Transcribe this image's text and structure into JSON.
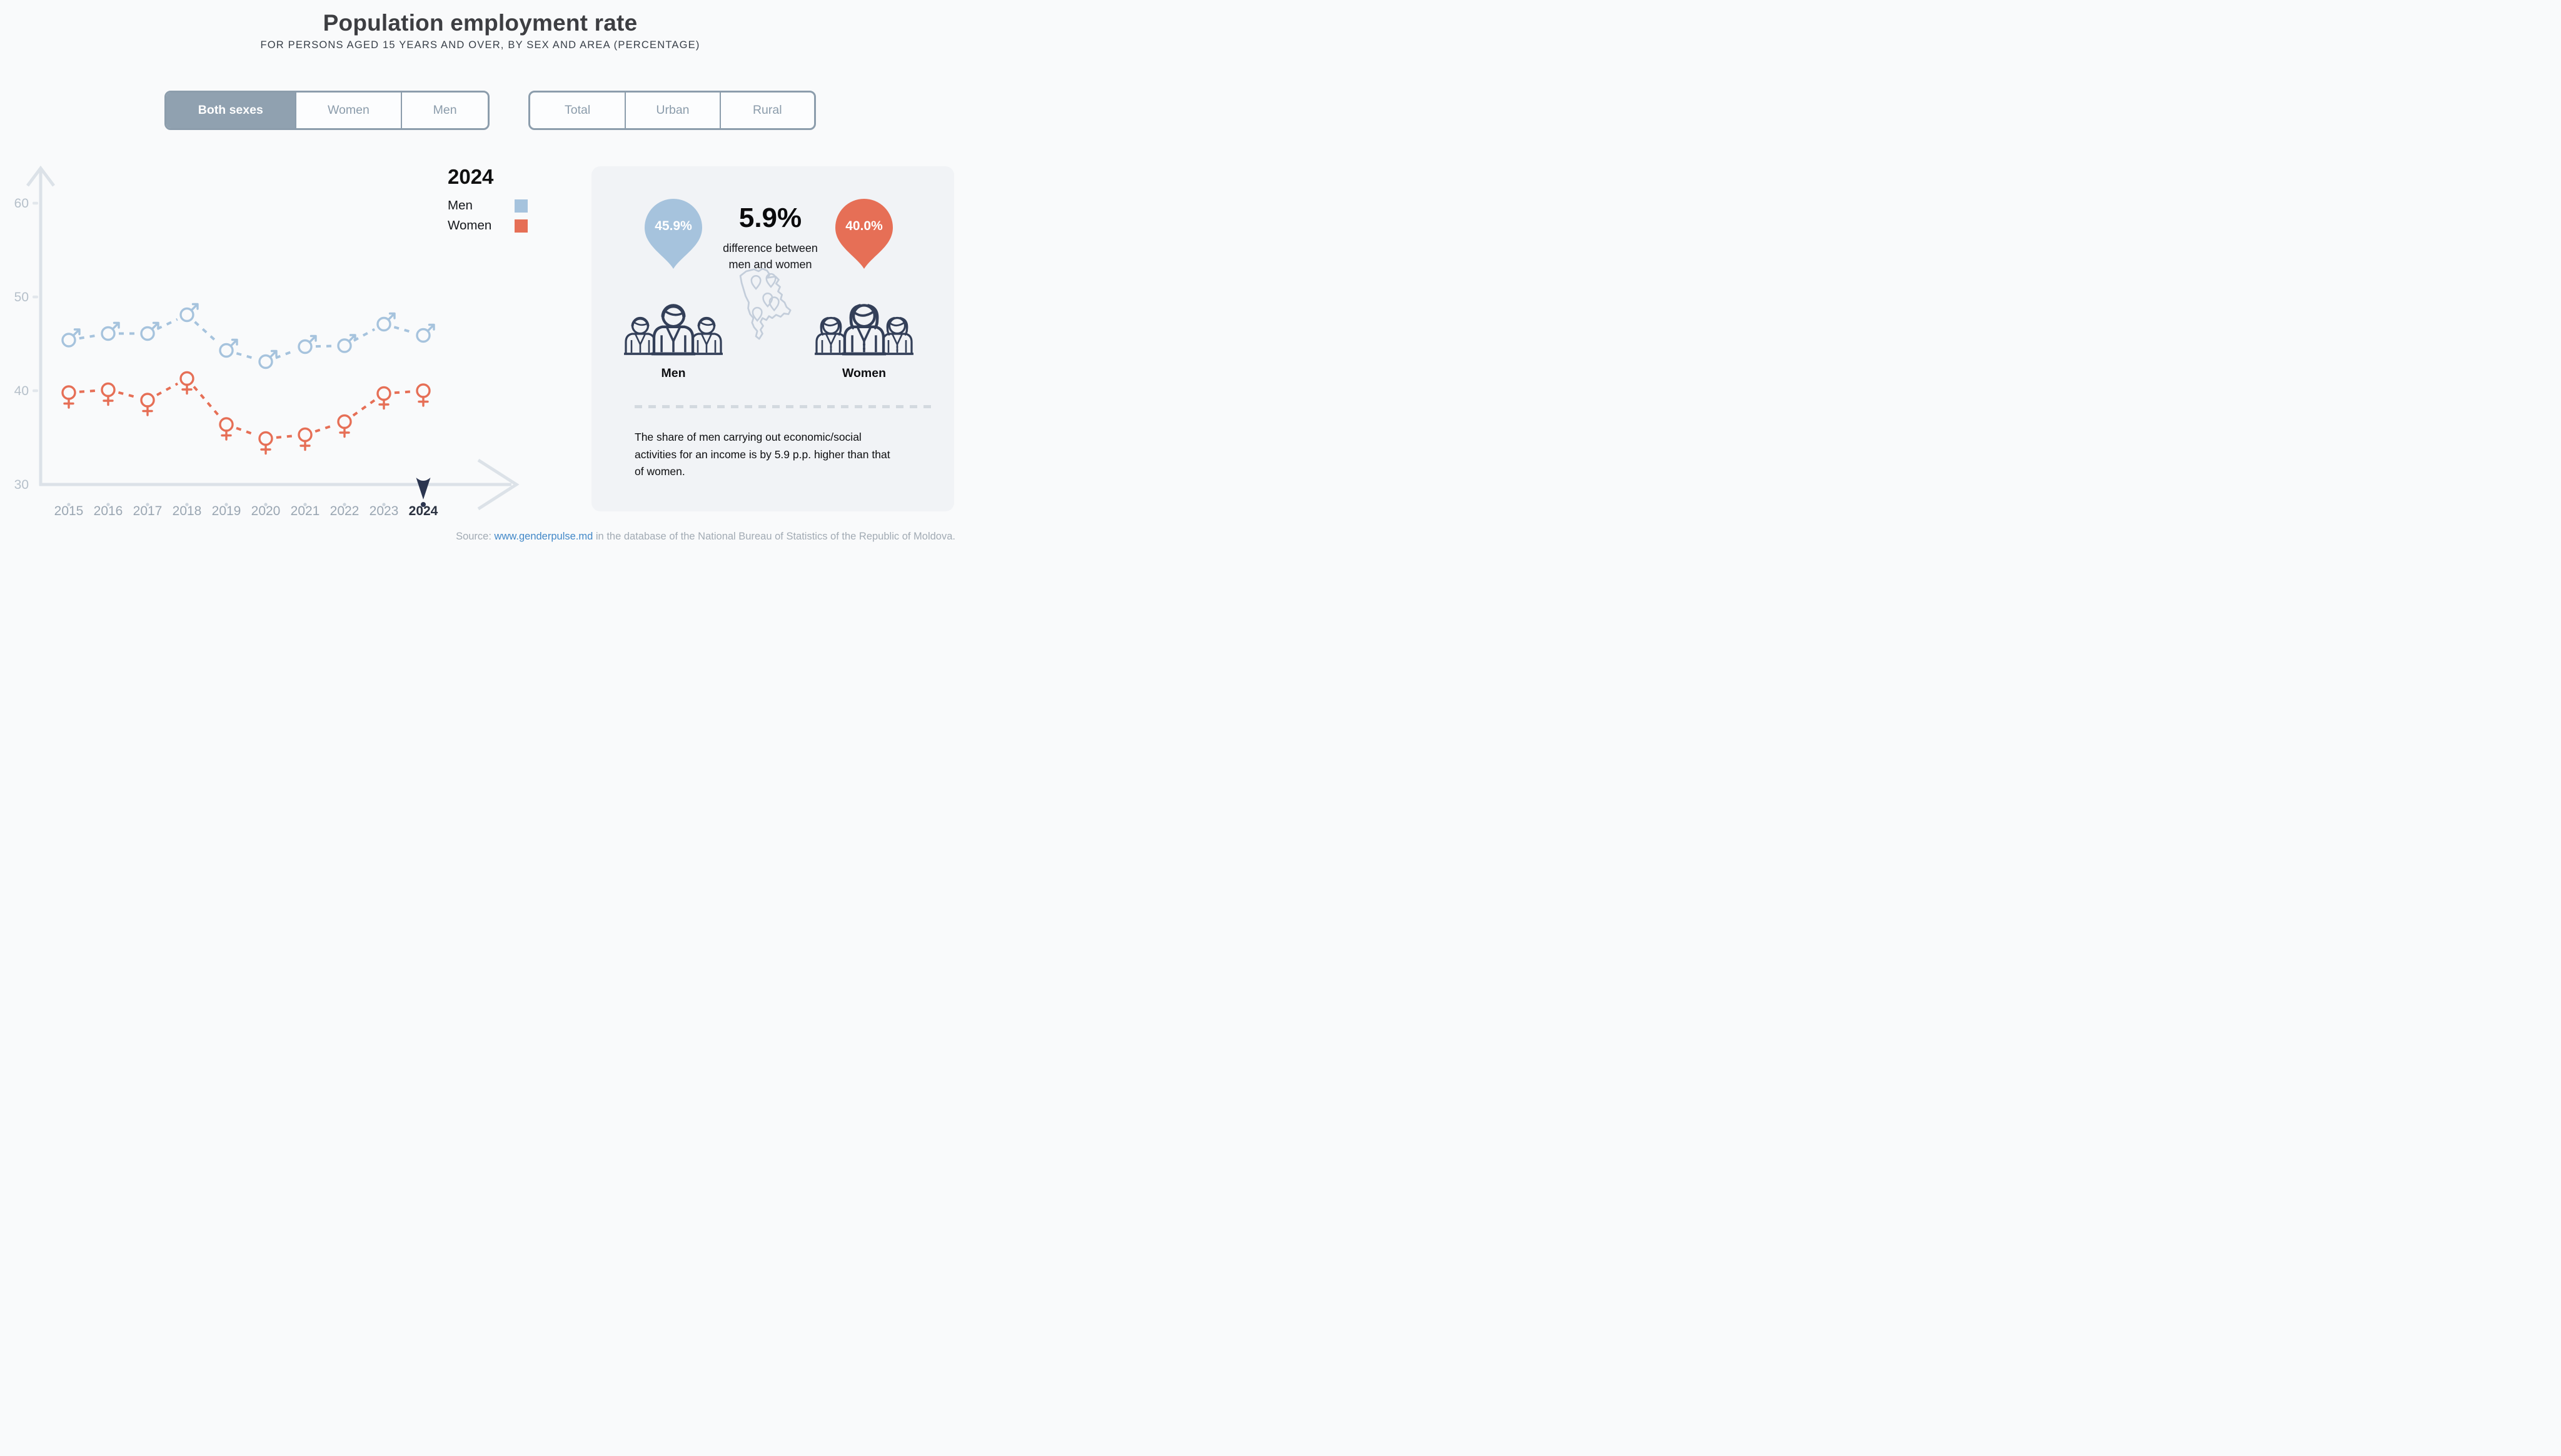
{
  "header": {
    "title": "Population employment rate",
    "subtitle": "FOR PERSONS AGED 15 YEARS AND OVER, BY SEX AND AREA (PERCENTAGE)"
  },
  "filters": {
    "sex": {
      "options": [
        {
          "label": "Both sexes",
          "active": true
        },
        {
          "label": "Women",
          "active": false
        },
        {
          "label": "Men",
          "active": false
        }
      ]
    },
    "area": {
      "options": [
        {
          "label": "Total",
          "active": false
        },
        {
          "label": "Urban",
          "active": false
        },
        {
          "label": "Rural",
          "active": false
        }
      ]
    }
  },
  "legend": {
    "year": "2024",
    "items": [
      {
        "label": "Men",
        "color": "#a6c3dd"
      },
      {
        "label": "Women",
        "color": "#e66f56"
      }
    ]
  },
  "chart_data": {
    "type": "line",
    "title": "",
    "xlabel": "",
    "ylabel": "",
    "x": [
      "2015",
      "2016",
      "2017",
      "2018",
      "2019",
      "2020",
      "2021",
      "2022",
      "2023",
      "2024"
    ],
    "series": [
      {
        "name": "Men",
        "marker": "male",
        "color": "#a6c3dd",
        "values": [
          45.4,
          46.1,
          46.1,
          48.1,
          44.3,
          43.1,
          44.7,
          44.8,
          47.1,
          45.9
        ]
      },
      {
        "name": "Women",
        "marker": "female",
        "color": "#e66f56",
        "values": [
          39.8,
          40.1,
          39.0,
          41.3,
          36.4,
          34.9,
          35.3,
          36.7,
          39.7,
          40.0
        ]
      }
    ],
    "ylim": [
      30,
      63
    ],
    "yticks": [
      30,
      40,
      50,
      60
    ],
    "grid": false,
    "line_style": "dashed",
    "highlight_x": "2024",
    "legend_position": "top-right"
  },
  "panel": {
    "pins": {
      "men": {
        "value": "45.9%",
        "color": "#a6c3dd"
      },
      "women": {
        "value": "40.0%",
        "color": "#e66f56"
      }
    },
    "difference": {
      "value": "5.9%",
      "caption_lines": [
        "difference between",
        "men and women"
      ]
    },
    "groups": {
      "men_label": "Men",
      "women_label": "Women"
    },
    "note_lines": [
      "The share of men carrying out economic/social",
      "activities for an income is by 5.9 p.p. higher than that",
      "of women."
    ]
  },
  "footer": {
    "prefix": "Source:",
    "link": "www.genderpulse.md",
    "suffix": "in the database of the National Bureau of Statistics of the Republic of Moldova."
  },
  "colors": {
    "page_bg": "#f9fafb",
    "panel_bg": "#f1f3f6",
    "axis": "#dce2e8",
    "tick_label": "#b6c0ca",
    "year_label": "#9aa6b2",
    "year_dot": "#ccd4dd",
    "highlight": "#2b3550",
    "men_series": "#a6c3dd",
    "women_series": "#e66f56",
    "toggle_active_bg": "#90a1b0",
    "toggle_border": "#8c9dac",
    "map_outline": "#c3cdda",
    "icon_stroke": "#333f58",
    "link": "#4288c8"
  }
}
